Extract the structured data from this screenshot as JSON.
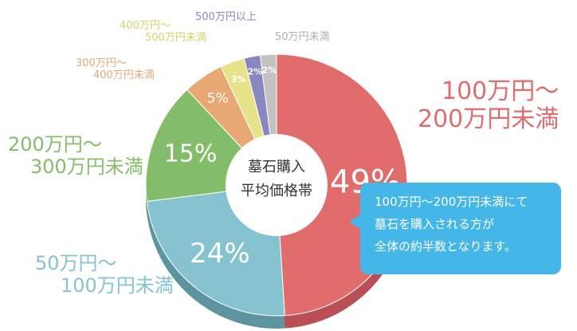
{
  "chart_data": {
    "type": "pie",
    "center_title": [
      "墓石購入",
      "平均価格帯"
    ],
    "slices": [
      {
        "label": [
          "100万円〜",
          "200万円未満"
        ],
        "value": 49,
        "display": "49%",
        "color": "#e06c6c",
        "side": "#b84f54"
      },
      {
        "label": [
          "50万円〜",
          "100万円未満"
        ],
        "value": 24,
        "display": "24%",
        "color": "#85c3d1",
        "side": "#5e93a0"
      },
      {
        "label": [
          "200万円〜",
          "300万円未満"
        ],
        "value": 15,
        "display": "15%",
        "color": "#84bd6a",
        "side": "#5d9147"
      },
      {
        "label": [
          "300万円〜",
          "400万円未満"
        ],
        "value": 5,
        "display": "5%",
        "color": "#e8a874",
        "side": "#b97e50"
      },
      {
        "label": [
          "400万円〜",
          "500万円未満"
        ],
        "value": 3,
        "display": "3%",
        "color": "#e6e38a",
        "side": "#b5b262"
      },
      {
        "label": [
          "500万円以上"
        ],
        "value": 2,
        "display": "2%",
        "color": "#8a86c0",
        "side": "#66628f"
      },
      {
        "label": [
          "50万円未満"
        ],
        "value": 2,
        "display": "2%",
        "color": "#c2c2c2",
        "side": "#979797"
      }
    ]
  },
  "callout": {
    "lines": [
      "100万円〜200万円未満にて",
      "墓石を購入される方が",
      "全体の約半数となります。"
    ],
    "color": "#45b6e8"
  }
}
